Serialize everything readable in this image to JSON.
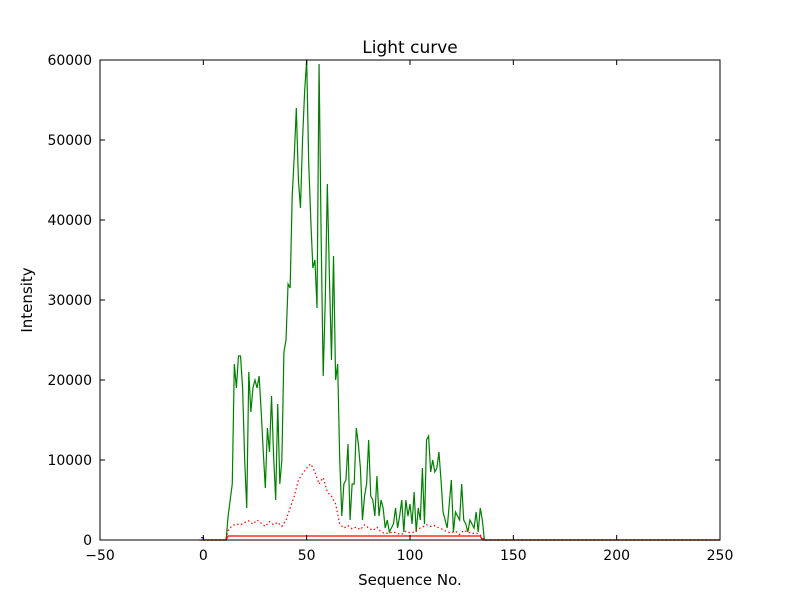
{
  "chart_data": {
    "type": "line",
    "title": "Light curve",
    "xlabel": "Sequence No.",
    "ylabel": "Intensity",
    "xlim": [
      -50,
      250
    ],
    "ylim": [
      0,
      60000
    ],
    "xticks": [
      -50,
      0,
      50,
      100,
      150,
      200,
      250
    ],
    "yticks": [
      0,
      10000,
      20000,
      30000,
      40000,
      50000,
      60000
    ],
    "xtick_labels": [
      "−50",
      "0",
      "50",
      "100",
      "150",
      "200",
      "250"
    ],
    "ytick_labels": [
      "0",
      "10000",
      "20000",
      "30000",
      "40000",
      "50000",
      "60000"
    ],
    "grid": false,
    "series": [
      {
        "color": "#008000",
        "style": "solid",
        "points": [
          [
            0,
            0
          ],
          [
            11,
            0
          ],
          [
            12,
            3000
          ],
          [
            14,
            7000
          ],
          [
            15,
            22000
          ],
          [
            16,
            19000
          ],
          [
            17,
            23000
          ],
          [
            18,
            23000
          ],
          [
            19,
            19000
          ],
          [
            20,
            10000
          ],
          [
            21,
            4000
          ],
          [
            22,
            21000
          ],
          [
            23,
            16000
          ],
          [
            24,
            19000
          ],
          [
            25,
            20000
          ],
          [
            26,
            19000
          ],
          [
            27,
            20500
          ],
          [
            28,
            16000
          ],
          [
            29,
            11000
          ],
          [
            30,
            6500
          ],
          [
            31,
            14000
          ],
          [
            32,
            11000
          ],
          [
            33,
            18000
          ],
          [
            34,
            10500
          ],
          [
            35,
            5000
          ],
          [
            36,
            17000
          ],
          [
            37,
            7000
          ],
          [
            38,
            10000
          ],
          [
            39,
            23500
          ],
          [
            40,
            25000
          ],
          [
            41,
            32000
          ],
          [
            42,
            31500
          ],
          [
            43,
            43000
          ],
          [
            44,
            48000
          ],
          [
            45,
            54000
          ],
          [
            46,
            45000
          ],
          [
            47,
            41500
          ],
          [
            48,
            50000
          ],
          [
            49,
            56000
          ],
          [
            50,
            60000
          ],
          [
            51,
            47000
          ],
          [
            52,
            40000
          ],
          [
            53,
            34000
          ],
          [
            54,
            35000
          ],
          [
            55,
            29000
          ],
          [
            56,
            59500
          ],
          [
            57,
            38000
          ],
          [
            58,
            20500
          ],
          [
            59,
            30000
          ],
          [
            60,
            44500
          ],
          [
            61,
            33000
          ],
          [
            62,
            22500
          ],
          [
            63,
            35500
          ],
          [
            64,
            20000
          ],
          [
            65,
            22000
          ],
          [
            66,
            10000
          ],
          [
            67,
            3000
          ],
          [
            68,
            7000
          ],
          [
            69,
            7500
          ],
          [
            70,
            12000
          ],
          [
            71,
            2500
          ],
          [
            72,
            7000
          ],
          [
            73,
            7000
          ],
          [
            74,
            14000
          ],
          [
            75,
            12000
          ],
          [
            76,
            9000
          ],
          [
            77,
            2500
          ],
          [
            78,
            5500
          ],
          [
            79,
            7000
          ],
          [
            80,
            12500
          ],
          [
            81,
            5500
          ],
          [
            82,
            5000
          ],
          [
            83,
            3000
          ],
          [
            84,
            8000
          ],
          [
            85,
            3000
          ],
          [
            86,
            5000
          ],
          [
            87,
            4000
          ],
          [
            88,
            1500
          ],
          [
            89,
            2500
          ],
          [
            90,
            1000
          ],
          [
            91,
            1500
          ],
          [
            92,
            2000
          ],
          [
            93,
            4000
          ],
          [
            94,
            1500
          ],
          [
            95,
            3000
          ],
          [
            96,
            5000
          ],
          [
            97,
            1000
          ],
          [
            98,
            5000
          ],
          [
            99,
            3000
          ],
          [
            100,
            4500
          ],
          [
            101,
            2000
          ],
          [
            102,
            6000
          ],
          [
            103,
            1000
          ],
          [
            104,
            4000
          ],
          [
            105,
            2500
          ],
          [
            106,
            9000
          ],
          [
            107,
            2000
          ],
          [
            108,
            12500
          ],
          [
            109,
            13000
          ],
          [
            110,
            8500
          ],
          [
            111,
            10000
          ],
          [
            112,
            8500
          ],
          [
            113,
            9000
          ],
          [
            114,
            11000
          ],
          [
            115,
            7500
          ],
          [
            116,
            3500
          ],
          [
            117,
            2500
          ],
          [
            118,
            1500
          ],
          [
            119,
            4500
          ],
          [
            120,
            7500
          ],
          [
            121,
            1000
          ],
          [
            122,
            3500
          ],
          [
            123,
            3000
          ],
          [
            124,
            2500
          ],
          [
            125,
            7000
          ],
          [
            126,
            2500
          ],
          [
            127,
            2000
          ],
          [
            128,
            1000
          ],
          [
            129,
            2500
          ],
          [
            130,
            2000
          ],
          [
            131,
            1500
          ],
          [
            132,
            3500
          ],
          [
            133,
            1000
          ],
          [
            134,
            4000
          ],
          [
            135,
            2500
          ],
          [
            136,
            0
          ],
          [
            250,
            0
          ]
        ]
      },
      {
        "color": "#ff0000",
        "style": "dotted",
        "points": [
          [
            0,
            0
          ],
          [
            11,
            0
          ],
          [
            12,
            1200
          ],
          [
            14,
            1800
          ],
          [
            16,
            2000
          ],
          [
            18,
            1900
          ],
          [
            20,
            2200
          ],
          [
            22,
            2400
          ],
          [
            24,
            2000
          ],
          [
            26,
            2500
          ],
          [
            28,
            2100
          ],
          [
            30,
            1700
          ],
          [
            32,
            2300
          ],
          [
            34,
            1900
          ],
          [
            36,
            2200
          ],
          [
            38,
            1700
          ],
          [
            40,
            2500
          ],
          [
            42,
            4000
          ],
          [
            44,
            5500
          ],
          [
            46,
            7500
          ],
          [
            48,
            8300
          ],
          [
            50,
            9000
          ],
          [
            52,
            9500
          ],
          [
            54,
            8500
          ],
          [
            56,
            7000
          ],
          [
            58,
            7800
          ],
          [
            60,
            6000
          ],
          [
            62,
            5500
          ],
          [
            64,
            4500
          ],
          [
            66,
            2000
          ],
          [
            68,
            1500
          ],
          [
            70,
            1800
          ],
          [
            72,
            1400
          ],
          [
            74,
            1600
          ],
          [
            76,
            1300
          ],
          [
            78,
            1900
          ],
          [
            80,
            1500
          ],
          [
            82,
            1200
          ],
          [
            84,
            1600
          ],
          [
            86,
            1000
          ],
          [
            88,
            800
          ],
          [
            90,
            900
          ],
          [
            92,
            1000
          ],
          [
            94,
            800
          ],
          [
            96,
            700
          ],
          [
            98,
            1100
          ],
          [
            100,
            900
          ],
          [
            102,
            1000
          ],
          [
            104,
            1400
          ],
          [
            106,
            1600
          ],
          [
            108,
            1900
          ],
          [
            110,
            1700
          ],
          [
            112,
            1800
          ],
          [
            114,
            1500
          ],
          [
            116,
            1300
          ],
          [
            118,
            1000
          ],
          [
            120,
            900
          ],
          [
            122,
            1100
          ],
          [
            124,
            700
          ],
          [
            126,
            1200
          ],
          [
            128,
            1000
          ],
          [
            130,
            800
          ],
          [
            132,
            900
          ],
          [
            134,
            600
          ],
          [
            136,
            0
          ],
          [
            250,
            0
          ]
        ]
      },
      {
        "color": "#ff0000",
        "style": "solid",
        "points": [
          [
            -2,
            0
          ],
          [
            11,
            0
          ],
          [
            12,
            500
          ],
          [
            134,
            500
          ],
          [
            135,
            0
          ],
          [
            250,
            0
          ]
        ]
      },
      {
        "color": "#0000ff",
        "style": "solid",
        "points": [
          [
            -1,
            300
          ],
          [
            0,
            300
          ],
          [
            0,
            0
          ]
        ]
      }
    ]
  }
}
